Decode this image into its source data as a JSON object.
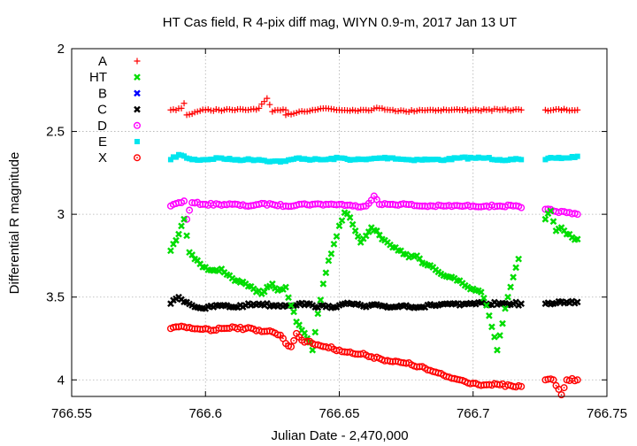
{
  "chart_data": {
    "type": "scatter",
    "title": "HT Cas field, R 4-pix diff mag, WIYN 0.9-m, 2017 Jan 13 UT",
    "xlabel": "Julian Date - 2,470,000",
    "ylabel": "Differential R magnitude",
    "xlim": [
      766.55,
      766.75
    ],
    "ylim": [
      2,
      4.1
    ],
    "y_inverted": true,
    "grid": true,
    "legend_position": "top-left",
    "x_ticks": [
      {
        "value": 766.55,
        "label": "766.55"
      },
      {
        "value": 766.6,
        "label": "766.6"
      },
      {
        "value": 766.65,
        "label": "766.65"
      },
      {
        "value": 766.7,
        "label": "766.7"
      },
      {
        "value": 766.75,
        "label": "766.75"
      }
    ],
    "y_ticks": [
      {
        "value": 2,
        "label": "2"
      },
      {
        "value": 2.5,
        "label": "2.5"
      },
      {
        "value": 3,
        "label": "3"
      },
      {
        "value": 3.5,
        "label": "3.5"
      },
      {
        "value": 4,
        "label": "4"
      }
    ],
    "data_x_range": [
      766.587,
      766.739
    ],
    "gap": [
      766.718,
      766.727
    ],
    "series": [
      {
        "name": "A",
        "color": "#ff0000",
        "marker": "plus",
        "points": [
          [
            766.587,
            2.37
          ],
          [
            766.591,
            2.36
          ],
          [
            766.592,
            2.33
          ],
          [
            766.593,
            2.4
          ],
          [
            766.597,
            2.38
          ],
          [
            766.6,
            2.37
          ],
          [
            766.605,
            2.37
          ],
          [
            766.61,
            2.37
          ],
          [
            766.615,
            2.37
          ],
          [
            766.62,
            2.36
          ],
          [
            766.623,
            2.3
          ],
          [
            766.625,
            2.38
          ],
          [
            766.63,
            2.37
          ],
          [
            766.63,
            2.4
          ],
          [
            766.635,
            2.38
          ],
          [
            766.64,
            2.37
          ],
          [
            766.645,
            2.36
          ],
          [
            766.65,
            2.37
          ],
          [
            766.655,
            2.37
          ],
          [
            766.66,
            2.37
          ],
          [
            766.665,
            2.36
          ],
          [
            766.67,
            2.37
          ],
          [
            766.675,
            2.38
          ],
          [
            766.68,
            2.37
          ],
          [
            766.685,
            2.37
          ],
          [
            766.69,
            2.37
          ],
          [
            766.695,
            2.37
          ],
          [
            766.7,
            2.37
          ],
          [
            766.705,
            2.37
          ],
          [
            766.71,
            2.37
          ],
          [
            766.715,
            2.37
          ],
          [
            766.718,
            2.37
          ],
          [
            766.727,
            2.37
          ],
          [
            766.73,
            2.37
          ],
          [
            766.735,
            2.37
          ],
          [
            766.739,
            2.37
          ]
        ]
      },
      {
        "name": "HT",
        "color": "#00dd00",
        "marker": "cross",
        "points": [
          [
            766.587,
            3.22
          ],
          [
            766.588,
            3.18
          ],
          [
            766.59,
            3.12
          ],
          [
            766.592,
            3.03
          ],
          [
            766.594,
            3.23
          ],
          [
            766.596,
            3.27
          ],
          [
            766.598,
            3.3
          ],
          [
            766.6,
            3.32
          ],
          [
            766.603,
            3.34
          ],
          [
            766.606,
            3.33
          ],
          [
            766.609,
            3.37
          ],
          [
            766.612,
            3.4
          ],
          [
            766.615,
            3.42
          ],
          [
            766.618,
            3.45
          ],
          [
            766.621,
            3.48
          ],
          [
            766.623,
            3.44
          ],
          [
            766.625,
            3.42
          ],
          [
            766.627,
            3.46
          ],
          [
            766.63,
            3.44
          ],
          [
            766.632,
            3.55
          ],
          [
            766.634,
            3.65
          ],
          [
            766.636,
            3.7
          ],
          [
            766.638,
            3.75
          ],
          [
            766.64,
            3.82
          ],
          [
            766.642,
            3.6
          ],
          [
            766.644,
            3.42
          ],
          [
            766.646,
            3.28
          ],
          [
            766.648,
            3.18
          ],
          [
            766.65,
            3.07
          ],
          [
            766.652,
            2.99
          ],
          [
            766.654,
            3.02
          ],
          [
            766.656,
            3.1
          ],
          [
            766.658,
            3.17
          ],
          [
            766.66,
            3.13
          ],
          [
            766.662,
            3.08
          ],
          [
            766.664,
            3.1
          ],
          [
            766.666,
            3.15
          ],
          [
            766.668,
            3.17
          ],
          [
            766.67,
            3.2
          ],
          [
            766.673,
            3.22
          ],
          [
            766.676,
            3.26
          ],
          [
            766.679,
            3.25
          ],
          [
            766.682,
            3.3
          ],
          [
            766.685,
            3.32
          ],
          [
            766.688,
            3.36
          ],
          [
            766.691,
            3.38
          ],
          [
            766.694,
            3.4
          ],
          [
            766.697,
            3.43
          ],
          [
            766.7,
            3.45
          ],
          [
            766.703,
            3.47
          ],
          [
            766.705,
            3.55
          ],
          [
            766.707,
            3.68
          ],
          [
            766.709,
            3.82
          ],
          [
            766.711,
            3.66
          ],
          [
            766.713,
            3.5
          ],
          [
            766.715,
            3.38
          ],
          [
            766.717,
            3.27
          ],
          [
            766.727,
            3.03
          ],
          [
            766.729,
            2.98
          ],
          [
            766.731,
            3.1
          ],
          [
            766.733,
            3.08
          ],
          [
            766.735,
            3.12
          ],
          [
            766.737,
            3.14
          ],
          [
            766.739,
            3.15
          ]
        ]
      },
      {
        "name": "B",
        "color": "#0000ff",
        "marker": "cross",
        "points": []
      },
      {
        "name": "C",
        "color": "#000000",
        "marker": "cross",
        "points": [
          [
            766.587,
            3.54
          ],
          [
            766.59,
            3.5
          ],
          [
            766.595,
            3.55
          ],
          [
            766.6,
            3.57
          ],
          [
            766.605,
            3.55
          ],
          [
            766.61,
            3.56
          ],
          [
            766.615,
            3.55
          ],
          [
            766.62,
            3.54
          ],
          [
            766.625,
            3.55
          ],
          [
            766.63,
            3.55
          ],
          [
            766.635,
            3.54
          ],
          [
            766.64,
            3.55
          ],
          [
            766.645,
            3.56
          ],
          [
            766.65,
            3.55
          ],
          [
            766.655,
            3.54
          ],
          [
            766.66,
            3.56
          ],
          [
            766.665,
            3.55
          ],
          [
            766.67,
            3.56
          ],
          [
            766.675,
            3.55
          ],
          [
            766.68,
            3.56
          ],
          [
            766.685,
            3.55
          ],
          [
            766.69,
            3.54
          ],
          [
            766.695,
            3.55
          ],
          [
            766.7,
            3.54
          ],
          [
            766.705,
            3.54
          ],
          [
            766.71,
            3.54
          ],
          [
            766.715,
            3.54
          ],
          [
            766.718,
            3.54
          ],
          [
            766.727,
            3.54
          ],
          [
            766.73,
            3.54
          ],
          [
            766.735,
            3.53
          ],
          [
            766.739,
            3.53
          ]
        ]
      },
      {
        "name": "D",
        "color": "#ff00ff",
        "marker": "circle",
        "points": [
          [
            766.587,
            2.95
          ],
          [
            766.59,
            2.93
          ],
          [
            766.592,
            2.92
          ],
          [
            766.593,
            3.03
          ],
          [
            766.595,
            2.93
          ],
          [
            766.6,
            2.94
          ],
          [
            766.605,
            2.94
          ],
          [
            766.61,
            2.94
          ],
          [
            766.615,
            2.95
          ],
          [
            766.62,
            2.94
          ],
          [
            766.625,
            2.94
          ],
          [
            766.63,
            2.95
          ],
          [
            766.635,
            2.94
          ],
          [
            766.64,
            2.94
          ],
          [
            766.645,
            2.94
          ],
          [
            766.65,
            2.94
          ],
          [
            766.655,
            2.95
          ],
          [
            766.66,
            2.95
          ],
          [
            766.663,
            2.89
          ],
          [
            766.665,
            2.94
          ],
          [
            766.67,
            2.94
          ],
          [
            766.675,
            2.94
          ],
          [
            766.68,
            2.95
          ],
          [
            766.685,
            2.95
          ],
          [
            766.69,
            2.95
          ],
          [
            766.695,
            2.95
          ],
          [
            766.7,
            2.95
          ],
          [
            766.705,
            2.95
          ],
          [
            766.71,
            2.95
          ],
          [
            766.715,
            2.95
          ],
          [
            766.718,
            2.96
          ],
          [
            766.727,
            2.97
          ],
          [
            766.73,
            2.98
          ],
          [
            766.735,
            2.99
          ],
          [
            766.739,
            3.0
          ]
        ]
      },
      {
        "name": "E",
        "color": "#00e5ee",
        "marker": "square",
        "points": [
          [
            766.587,
            2.67
          ],
          [
            766.59,
            2.64
          ],
          [
            766.595,
            2.67
          ],
          [
            766.6,
            2.67
          ],
          [
            766.605,
            2.66
          ],
          [
            766.61,
            2.67
          ],
          [
            766.615,
            2.67
          ],
          [
            766.62,
            2.67
          ],
          [
            766.625,
            2.68
          ],
          [
            766.63,
            2.68
          ],
          [
            766.635,
            2.66
          ],
          [
            766.64,
            2.67
          ],
          [
            766.645,
            2.67
          ],
          [
            766.65,
            2.66
          ],
          [
            766.655,
            2.67
          ],
          [
            766.66,
            2.67
          ],
          [
            766.665,
            2.66
          ],
          [
            766.67,
            2.66
          ],
          [
            766.675,
            2.67
          ],
          [
            766.68,
            2.67
          ],
          [
            766.685,
            2.67
          ],
          [
            766.69,
            2.67
          ],
          [
            766.695,
            2.66
          ],
          [
            766.7,
            2.66
          ],
          [
            766.705,
            2.66
          ],
          [
            766.71,
            2.67
          ],
          [
            766.715,
            2.67
          ],
          [
            766.718,
            2.67
          ],
          [
            766.727,
            2.67
          ],
          [
            766.73,
            2.66
          ],
          [
            766.735,
            2.66
          ],
          [
            766.739,
            2.65
          ]
        ]
      },
      {
        "name": "X",
        "color": "#ff0000",
        "marker": "circle",
        "points": [
          [
            766.587,
            3.69
          ],
          [
            766.59,
            3.68
          ],
          [
            766.595,
            3.69
          ],
          [
            766.6,
            3.69
          ],
          [
            766.603,
            3.7
          ],
          [
            766.606,
            3.69
          ],
          [
            766.61,
            3.68
          ],
          [
            766.615,
            3.69
          ],
          [
            766.62,
            3.7
          ],
          [
            766.625,
            3.71
          ],
          [
            766.628,
            3.73
          ],
          [
            766.63,
            3.78
          ],
          [
            766.632,
            3.8
          ],
          [
            766.634,
            3.72
          ],
          [
            766.636,
            3.76
          ],
          [
            766.64,
            3.78
          ],
          [
            766.645,
            3.8
          ],
          [
            766.65,
            3.82
          ],
          [
            766.655,
            3.84
          ],
          [
            766.66,
            3.85
          ],
          [
            766.665,
            3.87
          ],
          [
            766.67,
            3.89
          ],
          [
            766.675,
            3.9
          ],
          [
            766.68,
            3.92
          ],
          [
            766.685,
            3.95
          ],
          [
            766.69,
            3.98
          ],
          [
            766.695,
            4.0
          ],
          [
            766.7,
            4.02
          ],
          [
            766.705,
            4.03
          ],
          [
            766.71,
            4.03
          ],
          [
            766.715,
            4.04
          ],
          [
            766.718,
            4.04
          ],
          [
            766.727,
            4.0
          ],
          [
            766.73,
            4.0
          ],
          [
            766.733,
            4.09
          ],
          [
            766.735,
            4.0
          ],
          [
            766.739,
            4.0
          ]
        ]
      }
    ]
  }
}
